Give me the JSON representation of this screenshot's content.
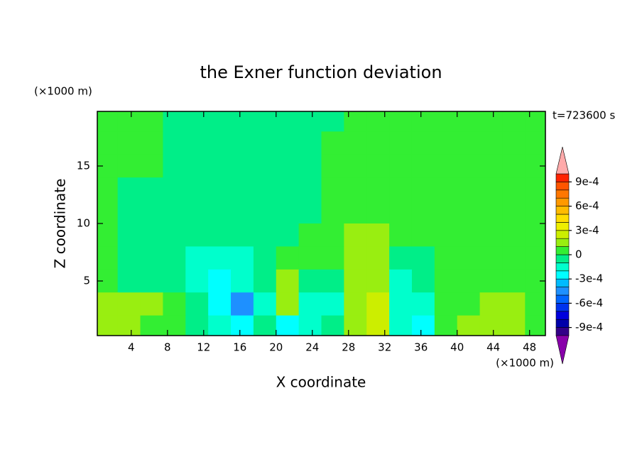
{
  "chart_data": {
    "type": "contour",
    "title": "the Exner function deviation",
    "xlabel": "X coordinate",
    "ylabel": "Z coordinate",
    "xunit": "(×1000 m)",
    "yunit": "(×1000 m)",
    "annotation": "t=723600 s",
    "xlim": [
      0.25,
      49.75
    ],
    "ylim": [
      0.25,
      19.75
    ],
    "xticks": [
      4,
      8,
      12,
      16,
      20,
      24,
      28,
      32,
      36,
      40,
      44,
      48
    ],
    "yticks": [
      5,
      10,
      15
    ],
    "x": [
      1.25,
      3.75,
      6.25,
      8.75,
      11.25,
      13.75,
      16.25,
      18.75,
      21.25,
      23.75,
      26.25,
      28.75,
      31.25,
      33.75,
      36.25,
      38.75,
      41.25,
      43.75,
      46.25,
      48.75
    ],
    "y": [
      19,
      17,
      15,
      13,
      11,
      9,
      7,
      5,
      3,
      1
    ],
    "z": [
      [
        5e-05,
        5e-05,
        5e-05,
        -5e-05,
        -5e-05,
        -5e-05,
        -5e-05,
        -5e-05,
        -5e-05,
        -5e-05,
        -5e-05,
        5e-05,
        5e-05,
        5e-05,
        5e-05,
        5e-05,
        5e-05,
        5e-05,
        5e-05,
        5e-05
      ],
      [
        5e-05,
        5e-05,
        5e-05,
        -5e-05,
        -5e-05,
        -5e-05,
        -5e-05,
        -5e-05,
        -5e-05,
        -5e-05,
        5e-05,
        5e-05,
        5e-05,
        5e-05,
        5e-05,
        5e-05,
        5e-05,
        5e-05,
        5e-05,
        5e-05
      ],
      [
        5e-05,
        5e-05,
        5e-05,
        -5e-05,
        -5e-05,
        -5e-05,
        -5e-05,
        -5e-05,
        -5e-05,
        -5e-05,
        5e-05,
        5e-05,
        5e-05,
        5e-05,
        5e-05,
        5e-05,
        5e-05,
        5e-05,
        5e-05,
        5e-05
      ],
      [
        5e-05,
        -5e-05,
        -5e-05,
        -5e-05,
        -5e-05,
        -5e-05,
        -5e-05,
        -5e-05,
        -5e-05,
        -5e-05,
        5e-05,
        5e-05,
        5e-05,
        5e-05,
        5e-05,
        5e-05,
        5e-05,
        5e-05,
        5e-05,
        5e-05
      ],
      [
        5e-05,
        -5e-05,
        -5e-05,
        -5e-05,
        -5e-05,
        -5e-05,
        -5e-05,
        -5e-05,
        -5e-05,
        -5e-05,
        5e-05,
        5e-05,
        5e-05,
        5e-05,
        5e-05,
        5e-05,
        5e-05,
        5e-05,
        5e-05,
        5e-05
      ],
      [
        5e-05,
        -5e-05,
        -5e-05,
        -5e-05,
        -5e-05,
        -5e-05,
        -5e-05,
        -5e-05,
        -5e-05,
        5e-05,
        5e-05,
        0.00015,
        0.00015,
        5e-05,
        5e-05,
        5e-05,
        5e-05,
        5e-05,
        5e-05,
        5e-05
      ],
      [
        5e-05,
        -5e-05,
        -5e-05,
        -5e-05,
        -0.00015,
        -0.00015,
        -0.00015,
        -5e-05,
        5e-05,
        5e-05,
        5e-05,
        0.00015,
        0.00015,
        -5e-05,
        -5e-05,
        5e-05,
        5e-05,
        5e-05,
        5e-05,
        5e-05
      ],
      [
        5e-05,
        -5e-05,
        -5e-05,
        -5e-05,
        -0.00015,
        -0.00025,
        -0.00015,
        -5e-05,
        0.00015,
        -5e-05,
        -5e-05,
        0.00015,
        0.00015,
        -0.00015,
        -5e-05,
        5e-05,
        5e-05,
        5e-05,
        5e-05,
        5e-05
      ],
      [
        0.00015,
        0.00015,
        0.00015,
        5e-05,
        -5e-05,
        -0.00025,
        -0.00045,
        -0.00015,
        0.00015,
        -0.00015,
        -0.00015,
        0.00015,
        0.00025,
        -0.00015,
        -0.00015,
        5e-05,
        5e-05,
        0.00015,
        0.00015,
        5e-05
      ],
      [
        0.00015,
        0.00015,
        5e-05,
        5e-05,
        -5e-05,
        -0.00015,
        -0.00025,
        -5e-05,
        -0.00025,
        -0.00015,
        -5e-05,
        0.00015,
        0.00025,
        -0.00015,
        -0.00025,
        5e-05,
        0.00015,
        0.00015,
        0.00015,
        5e-05
      ]
    ],
    "levels": [
      -0.001,
      -0.0009,
      -0.0008,
      -0.0007,
      -0.0006,
      -0.0005,
      -0.0004,
      -0.0003,
      -0.0002,
      -0.0001,
      0,
      0.0001,
      0.0002,
      0.0003,
      0.0004,
      0.0005,
      0.0006,
      0.0007,
      0.0008,
      0.0009,
      0.001
    ],
    "colors": [
      "#8800aa",
      "#330088",
      "#0000aa",
      "#0000dd",
      "#0033ee",
      "#0066ff",
      "#1e90ff",
      "#00bbff",
      "#00ffff",
      "#00ffcc",
      "#00ee88",
      "#33ee33",
      "#99ee11",
      "#ccee00",
      "#eeee00",
      "#ffdd00",
      "#ffbb00",
      "#ff9900",
      "#ff7700",
      "#ff5500",
      "#ff2200",
      "#ffaaaa"
    ],
    "cticks": [
      {
        "value": 0.0009,
        "label": "9e-4"
      },
      {
        "value": 0.0006,
        "label": "6e-4"
      },
      {
        "value": 0.0003,
        "label": "3e-4"
      },
      0,
      {
        "value": -0.0003,
        "label": "-3e-4"
      },
      {
        "value": -0.0006,
        "label": "-6e-4"
      },
      {
        "value": -0.0009,
        "label": "-9e-4"
      }
    ]
  }
}
